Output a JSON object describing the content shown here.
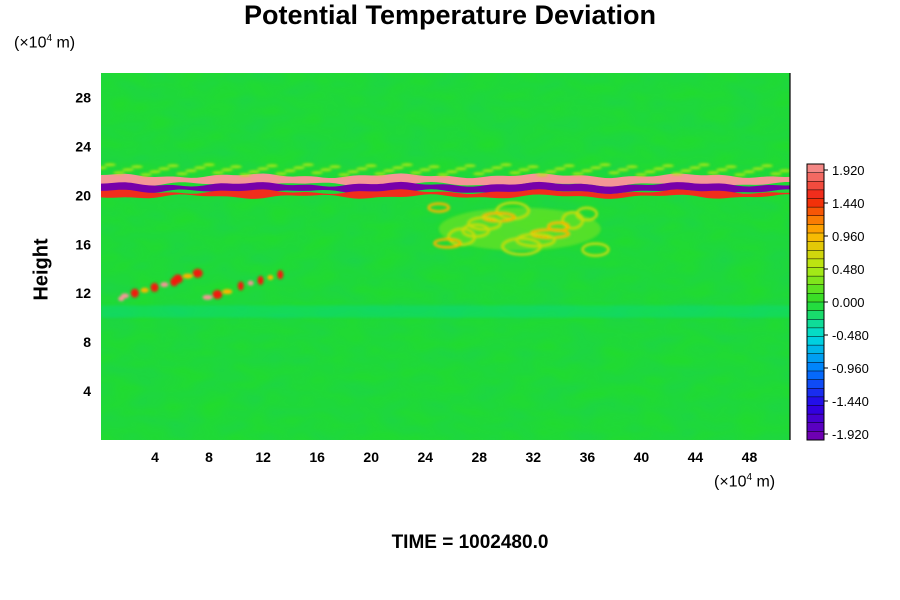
{
  "chart_data": {
    "type": "heatmap",
    "title": "Potential Temperature Deviation",
    "ylabel": "Height",
    "x_unit": "(×10",
    "x_unit_exp": "4",
    "x_unit_suffix": " m)",
    "y_unit": "(×10",
    "y_unit_exp": "4",
    "y_unit_suffix": " m)",
    "xlim": [
      0,
      51
    ],
    "ylim": [
      0,
      30
    ],
    "x_ticks": [
      "4",
      "8",
      "12",
      "16",
      "20",
      "24",
      "28",
      "32",
      "36",
      "40",
      "44",
      "48"
    ],
    "y_ticks": [
      "4",
      "8",
      "12",
      "16",
      "20",
      "24",
      "28"
    ],
    "colorbar": {
      "range": [
        -1.92,
        1.92
      ],
      "ticks": [
        "1.920",
        "1.440",
        "0.960",
        "0.480",
        "0.000",
        "-0.480",
        "-0.960",
        "-1.440",
        "-1.920"
      ]
    },
    "features": [
      {
        "name": "band-upper-warm",
        "x": [
          0,
          51
        ],
        "y": [
          20.9,
          21.6
        ],
        "value": 1.92
      },
      {
        "name": "band-cold",
        "x": [
          0,
          51
        ],
        "y": [
          20.3,
          20.9
        ],
        "value": -1.92
      },
      {
        "name": "band-lower-warm",
        "x": [
          0,
          51
        ],
        "y": [
          19.9,
          20.3
        ],
        "value": 1.5
      },
      {
        "name": "upper-ripple",
        "x": [
          0,
          51
        ],
        "y": [
          21.6,
          22.5
        ],
        "value": 0.5
      },
      {
        "name": "plume-warm",
        "x": [
          25,
          37
        ],
        "y": [
          15.5,
          19
        ],
        "value": 0.6
      },
      {
        "name": "cluster-warm",
        "x": [
          1.5,
          14
        ],
        "y": [
          11.3,
          13.5
        ],
        "value": 1.2
      },
      {
        "name": "cool-layer",
        "x": [
          0,
          51
        ],
        "y": [
          10,
          11
        ],
        "value": -0.3
      }
    ],
    "grid": false,
    "legend": "right"
  },
  "time_label": "TIME = 1002480.0"
}
